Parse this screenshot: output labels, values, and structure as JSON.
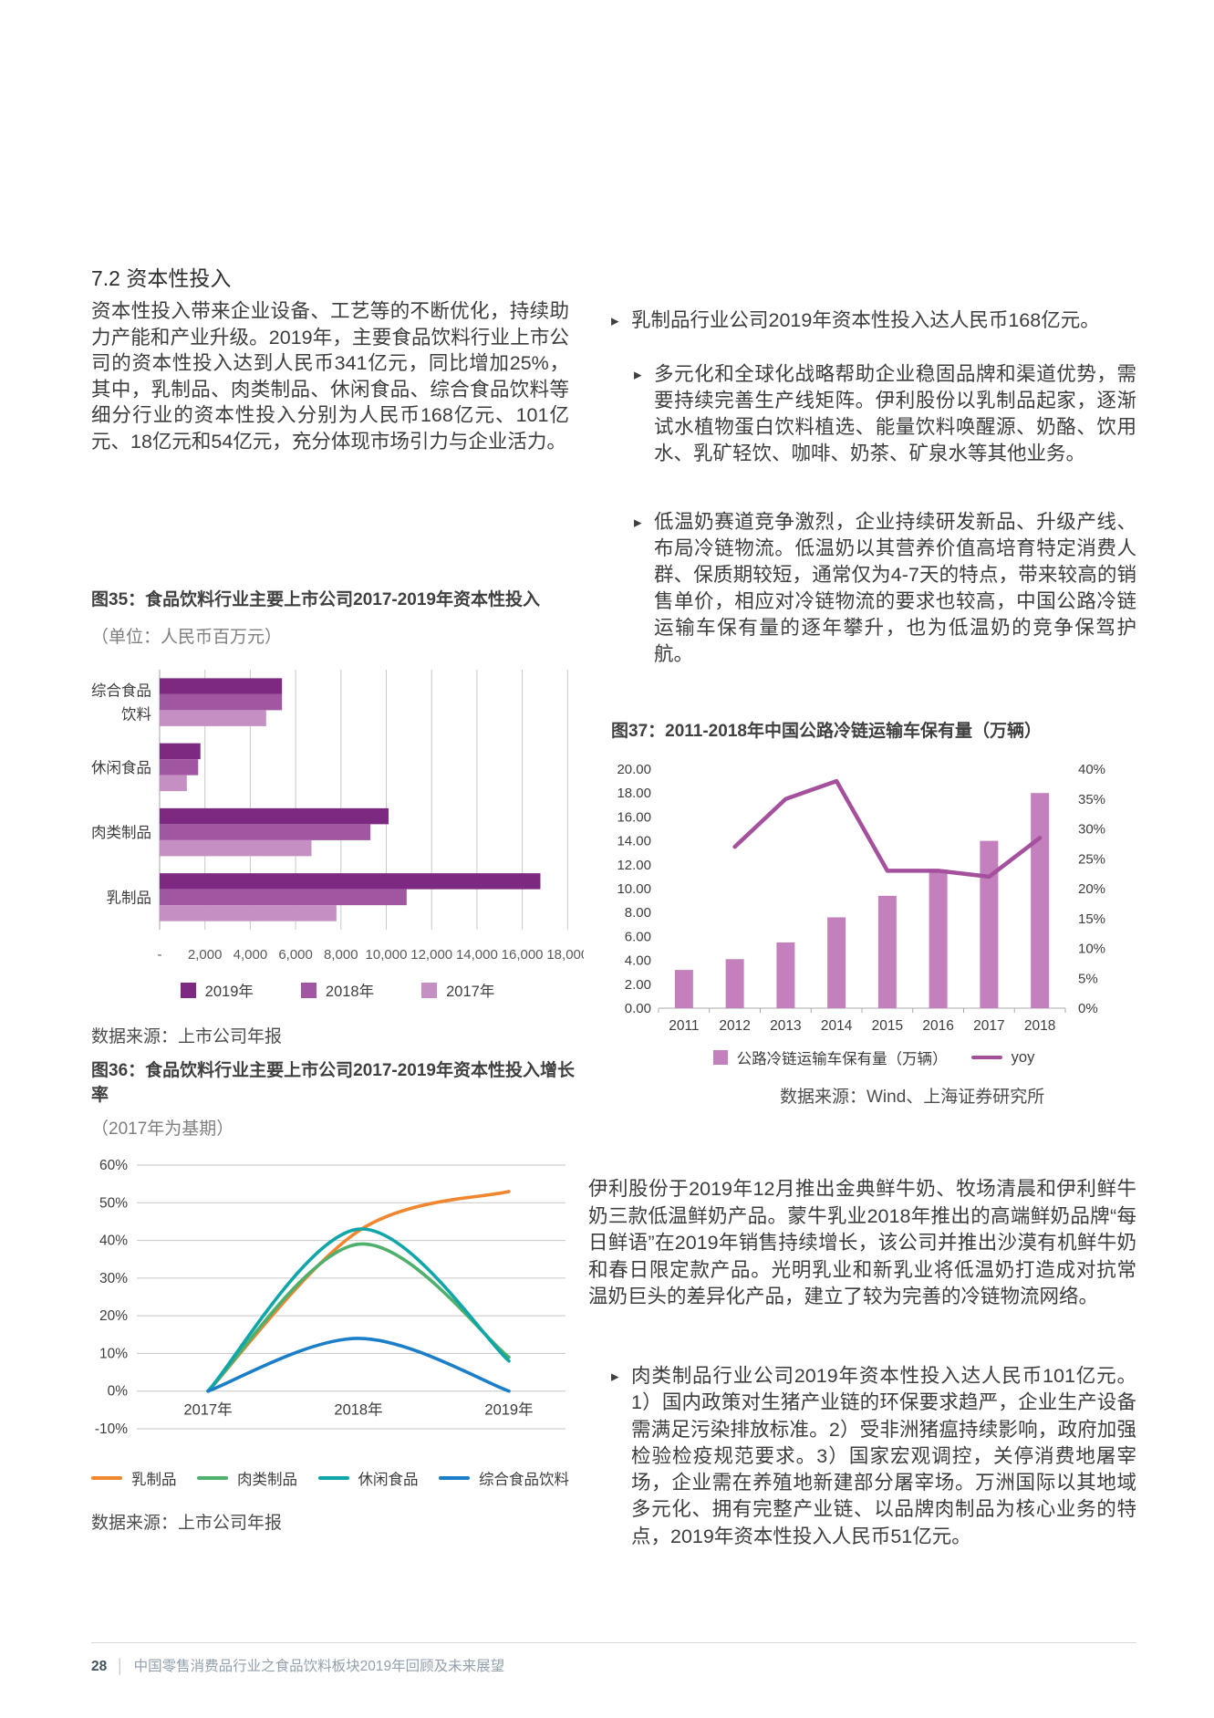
{
  "page": {
    "section_heading": "7.2 资本性投入",
    "intro_paragraph": "资本性投入带来企业设备、工艺等的不断优化，持续助力产能和产业升级。2019年，主要食品饮料行业上市公司的资本性投入达到人民币341亿元，同比增加25%，其中，乳制品、肉类制品、休闲食品、综合食品饮料等细分行业的资本性投入分别为人民币168亿元、101亿元、18亿元和54亿元，充分体现市场引力与企业活力。",
    "footer": {
      "page_number": "28",
      "separator": "│",
      "report_title": "中国零售消费品行业之食品饮料板块2019年回顾及未来展望"
    },
    "icons": {
      "bullet": "▸"
    }
  },
  "right_column": {
    "bullet_dairy": "乳制品行业公司2019年资本性投入达人民币168亿元。",
    "sub_bullet_1": "多元化和全球化战略帮助企业稳固品牌和渠道优势，需要持续完善生产线矩阵。伊利股份以乳制品起家，逐渐试水植物蛋白饮料植选、能量饮料唤醒源、奶酪、饮用水、乳矿轻饮、咖啡、奶茶、矿泉水等其他业务。",
    "sub_bullet_2": "低温奶赛道竞争激烈，企业持续研发新品、升级产线、布局冷链物流。低温奶以其营养价值高培育特定消费人群、保质期较短，通常仅为4-7天的特点，带来较高的销售单价，相应对冷链物流的要求也较高，中国公路冷链运输车保有量的逐年攀升，也为低温奶的竞争保驾护航。",
    "fresh_milk_paragraph": "伊利股份于2019年12月推出金典鲜牛奶、牧场清晨和伊利鲜牛奶三款低温鲜奶产品。蒙牛乳业2018年推出的高端鲜奶品牌“每日鲜语”在2019年销售持续增长，该公司并推出沙漠有机鲜牛奶和春日限定款产品。光明乳业和新乳业将低温奶打造成对抗常温奶巨头的差异化产品，建立了较为完善的冷链物流网络。",
    "bullet_meat": "肉类制品行业公司2019年资本性投入达人民币101亿元。1）国内政策对生猪产业链的环保要求趋严，企业生产设备需满足污染排放标准。2）受非洲猪瘟持续影响，政府加强检验检疫规范要求。3）国家宏观调控，关停消费地屠宰场，企业需在养殖地新建部分屠宰场。万洲国际以其地域多元化、拥有完整产业链、以品牌肉制品为核心业务的特点，2019年资本性投入人民币51亿元。"
  },
  "figures": {
    "fig35": {
      "title": "图35：食品饮料行业主要上市公司2017-2019年资本性投入",
      "subtitle": "（单位：人民币百万元）",
      "source": "数据来源：上市公司年报"
    },
    "fig36": {
      "title": "图36：食品饮料行业主要上市公司2017-2019年资本性投入增长率",
      "subtitle": "（2017年为基期）",
      "source": "数据来源：上市公司年报"
    },
    "fig37": {
      "title": "图37：2011-2018年中国公路冷链运输车保有量（万辆）",
      "source": "数据来源：Wind、上海证券研究所"
    }
  },
  "chart_data": [
    {
      "id": "fig35",
      "type": "bar",
      "orientation": "horizontal",
      "title": "食品饮料行业主要上市公司2017-2019年资本性投入",
      "categories": [
        "综合食品\n饮料",
        "休闲食品",
        "肉类制品",
        "乳制品"
      ],
      "series": [
        {
          "name": "2019年",
          "color": "#7D2981",
          "values": [
            5400,
            1800,
            10100,
            16800
          ]
        },
        {
          "name": "2018年",
          "color": "#A156A2",
          "values": [
            5400,
            1700,
            9300,
            10900
          ]
        },
        {
          "name": "2017年",
          "color": "#C58FC4",
          "values": [
            4700,
            1200,
            6700,
            7800
          ]
        }
      ],
      "xlim": [
        0,
        18000
      ],
      "x_ticks": [
        "-",
        "2,000",
        "4,000",
        "6,000",
        "8,000",
        "10,000",
        "12,000",
        "14,000",
        "16,000",
        "18,000"
      ],
      "grid": true,
      "legend_position": "bottom"
    },
    {
      "id": "fig36",
      "type": "line",
      "title": "食品饮料行业主要上市公司2017-2019年资本性投入增长率（2017年为基期）",
      "x": [
        "2017年",
        "2018年",
        "2019年"
      ],
      "series": [
        {
          "name": "乳制品",
          "color": "#F0862F",
          "values": [
            0,
            42.5,
            53
          ]
        },
        {
          "name": "肉类制品",
          "color": "#4FAF6C",
          "values": [
            0,
            39,
            9
          ]
        },
        {
          "name": "休闲食品",
          "color": "#0EA6A9",
          "values": [
            0,
            43,
            8
          ]
        },
        {
          "name": "综合食品饮料",
          "color": "#1A7EC8",
          "values": [
            0,
            14,
            0
          ]
        }
      ],
      "ylim": [
        -10,
        60
      ],
      "y_ticks": [
        "60%",
        "50%",
        "40%",
        "30%",
        "20%",
        "10%",
        "0%",
        "-10%"
      ],
      "grid": true,
      "legend_position": "bottom"
    },
    {
      "id": "fig37",
      "type": "combo",
      "title": "2011-2018年中国公路冷链运输车保有量（万辆）",
      "categories": [
        "2011",
        "2012",
        "2013",
        "2014",
        "2015",
        "2016",
        "2017",
        "2018"
      ],
      "bar_series": {
        "name": "公路冷链运输车保有量（万辆）",
        "color": "#C480BD",
        "values": [
          3.2,
          4.1,
          5.5,
          7.6,
          9.4,
          11.6,
          14.0,
          18.0
        ]
      },
      "line_series": {
        "name": "yoy",
        "color": "#A4509C",
        "axis": "right",
        "values": [
          null,
          27,
          35,
          38,
          23,
          23,
          22,
          28.5
        ]
      },
      "left_ylim": [
        0,
        20
      ],
      "left_ticks": [
        "20.00",
        "18.00",
        "16.00",
        "14.00",
        "12.00",
        "10.00",
        "8.00",
        "6.00",
        "4.00",
        "2.00",
        "0.00"
      ],
      "right_ylim": [
        0,
        40
      ],
      "right_ticks": [
        "40%",
        "35%",
        "30%",
        "25%",
        "20%",
        "15%",
        "10%",
        "5%",
        "0%"
      ],
      "grid": false,
      "legend_position": "bottom"
    }
  ]
}
